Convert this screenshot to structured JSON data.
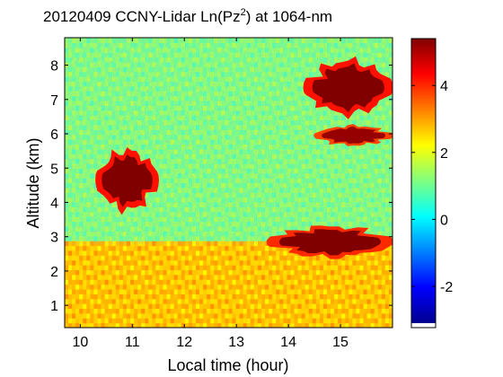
{
  "chart_data": {
    "type": "heatmap",
    "title_prefix": "20120409 CCNY-Lidar Ln(Pz",
    "title_superscript": "2",
    "title_suffix": ") at 1064-nm",
    "xlabel": "Local time (hour)",
    "ylabel": "Altitude (km)",
    "xlim": [
      9.7,
      16.0
    ],
    "ylim": [
      0.35,
      8.8
    ],
    "xticks": [
      10,
      11,
      12,
      13,
      14,
      15
    ],
    "yticks": [
      1,
      2,
      3,
      4,
      5,
      6,
      7,
      8
    ],
    "colorbar": {
      "clim": [
        -3.1,
        5.4
      ],
      "ticks": [
        -2,
        0,
        2,
        4
      ],
      "colormap": "jet"
    },
    "features": [
      {
        "name": "mid-level cloud",
        "x": [
          10.3,
          11.5
        ],
        "y": [
          3.6,
          5.7
        ],
        "value": 5.2
      },
      {
        "name": "high cloud",
        "x": [
          14.3,
          16.0
        ],
        "y": [
          6.4,
          8.3
        ],
        "value": 5.2
      },
      {
        "name": "cloud layer",
        "x": [
          14.5,
          16.0
        ],
        "y": [
          5.6,
          6.3
        ],
        "value": 4.8
      },
      {
        "name": "low cloud band",
        "x": [
          13.6,
          16.0
        ],
        "y": [
          2.3,
          3.4
        ],
        "value": 5.0
      },
      {
        "name": "boundary layer",
        "x": [
          9.7,
          16.0
        ],
        "y": [
          0.35,
          2.8
        ],
        "value": 2.7
      },
      {
        "name": "free troposphere",
        "x": [
          9.7,
          16.0
        ],
        "y": [
          2.8,
          8.8
        ],
        "value": 1.2
      }
    ]
  }
}
